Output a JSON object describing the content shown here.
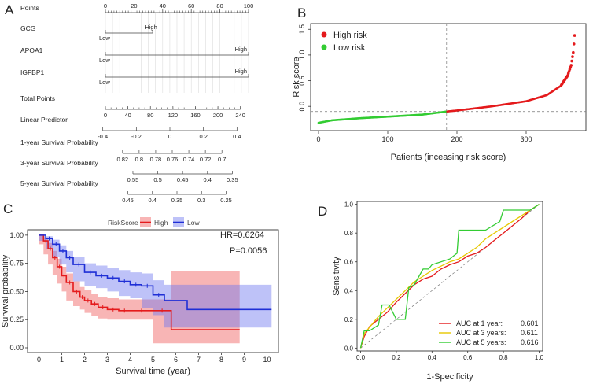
{
  "panels": {
    "a": "A",
    "b": "B",
    "c": "C",
    "d": "D"
  },
  "chart_data": [
    {
      "type": "nomogram",
      "panel": "A",
      "rows": [
        {
          "label": "Points",
          "ticks": [
            "0",
            "20",
            "40",
            "60",
            "80",
            "100"
          ],
          "values": [
            0,
            20,
            40,
            60,
            80,
            100
          ],
          "range": [
            0,
            100
          ]
        },
        {
          "label": "GCG",
          "low_label": "Low",
          "high_label": "High",
          "max_points": 33
        },
        {
          "label": "APOA1",
          "low_label": "Low",
          "high_label": "High",
          "max_points": 100
        },
        {
          "label": "IGFBP1",
          "low_label": "Low",
          "high_label": "High",
          "max_points": 100
        },
        {
          "label": "Total Points",
          "ticks": [
            "0",
            "40",
            "80",
            "120",
            "160",
            "200",
            "240"
          ],
          "values": [
            0,
            40,
            80,
            120,
            160,
            200,
            240
          ],
          "range": [
            0,
            260
          ]
        },
        {
          "label": "Linear Predictor",
          "ticks": [
            "-0.4",
            "-0.2",
            "0",
            "0.2",
            "0.4"
          ],
          "values": [
            -0.4,
            -0.2,
            0,
            0.2,
            0.4
          ],
          "range": [
            -0.45,
            0.45
          ]
        },
        {
          "label": "1-year Survival Probability",
          "ticks": [
            "0.82",
            "0.8",
            "0.78",
            "0.76",
            "0.74",
            "0.72",
            "0.7"
          ],
          "values": [
            0.82,
            0.8,
            0.78,
            0.76,
            0.74,
            0.72,
            0.7
          ],
          "range": [
            0.835,
            0.685
          ]
        },
        {
          "label": "3-year Survival Probability",
          "ticks": [
            "0.55",
            "0.5",
            "0.45",
            "0.4",
            "0.35"
          ],
          "values": [
            0.55,
            0.5,
            0.45,
            0.4,
            0.35
          ],
          "range": [
            0.58,
            0.33
          ]
        },
        {
          "label": "5-year Survival Probability",
          "ticks": [
            "0.45",
            "0.4",
            "0.35",
            "0.3",
            "0.25"
          ],
          "values": [
            0.45,
            0.4,
            0.35,
            0.3,
            0.25
          ],
          "range": [
            0.47,
            0.23
          ]
        }
      ]
    },
    {
      "type": "scatter",
      "panel": "B",
      "xlabel": "Patients (inceasing risk score)",
      "ylabel": "Risk score",
      "xlim": [
        0,
        375
      ],
      "ylim": [
        -0.38,
        1.55
      ],
      "xticks": [
        0,
        100,
        200,
        300
      ],
      "yticks": [
        -0.0,
        0.5,
        1.0,
        1.5
      ],
      "ytick_labels": [
        "0.0",
        "0.5",
        "1.0",
        "1.5"
      ],
      "cutoff_x": 185,
      "cutoff_y": -0.1,
      "n_patients": 370,
      "series": [
        {
          "name": "High risk",
          "color": "#e41a1c"
        },
        {
          "name": "Low risk",
          "color": "#33cc33"
        }
      ],
      "curve_points": [
        [
          0,
          -0.32
        ],
        [
          20,
          -0.27
        ],
        [
          60,
          -0.23
        ],
        [
          100,
          -0.2
        ],
        [
          150,
          -0.16
        ],
        [
          185,
          -0.1
        ],
        [
          200,
          -0.08
        ],
        [
          250,
          0.0
        ],
        [
          300,
          0.1
        ],
        [
          330,
          0.22
        ],
        [
          350,
          0.4
        ],
        [
          360,
          0.6
        ],
        [
          365,
          0.8
        ],
        [
          368,
          1.05
        ],
        [
          370,
          1.38
        ]
      ]
    },
    {
      "type": "line",
      "panel": "C",
      "subtype": "kaplan-meier",
      "xlabel": "Survival time (year)",
      "ylabel": "Survival probability",
      "xlim": [
        -0.5,
        10.5
      ],
      "ylim": [
        0,
        1.02
      ],
      "xticks": [
        0,
        1,
        2,
        3,
        4,
        5,
        6,
        7,
        8,
        9,
        10
      ],
      "yticks": [
        0.0,
        0.25,
        0.5,
        0.75,
        1.0
      ],
      "ytick_labels": [
        "0.00",
        "0.25",
        "0.50",
        "0.75",
        "1.00"
      ],
      "legend_title": "RiskScore",
      "legend_position": "top",
      "annotations": [
        "HR=0.6264",
        "P=0.0056"
      ],
      "series": [
        {
          "name": "High",
          "color": "#e41a1c",
          "x": [
            0,
            0.2,
            0.4,
            0.6,
            0.8,
            1.0,
            1.2,
            1.5,
            1.8,
            2.0,
            2.3,
            2.6,
            3.0,
            3.5,
            4.0,
            5.0,
            5.8,
            8.8
          ],
          "y": [
            1.0,
            0.95,
            0.88,
            0.8,
            0.72,
            0.64,
            0.58,
            0.5,
            0.45,
            0.42,
            0.39,
            0.36,
            0.34,
            0.33,
            0.33,
            0.33,
            0.16,
            0.16
          ],
          "ci_upper": [
            1.0,
            0.98,
            0.93,
            0.86,
            0.79,
            0.72,
            0.66,
            0.59,
            0.54,
            0.51,
            0.48,
            0.45,
            0.44,
            0.43,
            0.43,
            0.43,
            0.68,
            0.68
          ],
          "ci_lower": [
            1.0,
            0.92,
            0.83,
            0.74,
            0.65,
            0.57,
            0.5,
            0.42,
            0.37,
            0.34,
            0.31,
            0.28,
            0.26,
            0.25,
            0.25,
            0.25,
            0.04,
            0.04
          ]
        },
        {
          "name": "Low",
          "color": "#1f2fd6",
          "x": [
            0,
            0.3,
            0.6,
            0.9,
            1.2,
            1.5,
            2.0,
            2.5,
            3.0,
            3.5,
            4.0,
            4.5,
            5.0,
            5.5,
            6.5,
            10.2
          ],
          "y": [
            1.0,
            0.97,
            0.92,
            0.86,
            0.8,
            0.74,
            0.67,
            0.64,
            0.62,
            0.59,
            0.56,
            0.55,
            0.47,
            0.42,
            0.34,
            0.34
          ],
          "ci_upper": [
            1.0,
            0.99,
            0.96,
            0.91,
            0.86,
            0.81,
            0.75,
            0.73,
            0.71,
            0.69,
            0.67,
            0.66,
            0.6,
            0.56,
            0.56,
            0.56
          ],
          "ci_lower": [
            1.0,
            0.95,
            0.88,
            0.81,
            0.74,
            0.67,
            0.59,
            0.55,
            0.53,
            0.5,
            0.46,
            0.44,
            0.35,
            0.29,
            0.18,
            0.18
          ]
        }
      ]
    },
    {
      "type": "line",
      "panel": "D",
      "subtype": "roc",
      "xlabel": "1-Specificity",
      "ylabel": "Sensitivity",
      "xlim": [
        -0.02,
        1.02
      ],
      "ylim": [
        -0.02,
        1.02
      ],
      "xticks": [
        0.0,
        0.2,
        0.4,
        0.6,
        0.8,
        1.0
      ],
      "yticks": [
        0.0,
        0.2,
        0.4,
        0.6,
        0.8,
        1.0
      ],
      "tick_labels": [
        "0.0",
        "0.2",
        "0.4",
        "0.6",
        "0.8",
        "1.0"
      ],
      "legend_position": "bottom-right",
      "series": [
        {
          "name": "AUC at 1 year:",
          "auc": "0.601",
          "color": "#e41a1c",
          "x": [
            0,
            0.02,
            0.05,
            0.1,
            0.15,
            0.2,
            0.25,
            0.3,
            0.35,
            0.4,
            0.45,
            0.5,
            0.55,
            0.6,
            0.65,
            0.7,
            0.75,
            0.8,
            0.85,
            0.9,
            0.95,
            1.0
          ],
          "y": [
            0,
            0.08,
            0.15,
            0.2,
            0.25,
            0.32,
            0.38,
            0.44,
            0.48,
            0.5,
            0.55,
            0.58,
            0.6,
            0.64,
            0.66,
            0.7,
            0.75,
            0.8,
            0.85,
            0.9,
            0.96,
            1.0
          ]
        },
        {
          "name": "AUC at 3 years:",
          "auc": "0.611",
          "color": "#e6c800",
          "x": [
            0,
            0.02,
            0.06,
            0.1,
            0.15,
            0.2,
            0.25,
            0.3,
            0.35,
            0.4,
            0.45,
            0.5,
            0.55,
            0.6,
            0.65,
            0.7,
            0.75,
            0.8,
            0.85,
            0.9,
            0.95,
            1.0
          ],
          "y": [
            0,
            0.1,
            0.16,
            0.22,
            0.28,
            0.34,
            0.4,
            0.46,
            0.5,
            0.54,
            0.57,
            0.6,
            0.62,
            0.66,
            0.7,
            0.76,
            0.8,
            0.84,
            0.88,
            0.92,
            0.96,
            1.0
          ]
        },
        {
          "name": "AUC at 5 years:",
          "auc": "0.616",
          "color": "#33cc33",
          "x": [
            0,
            0.02,
            0.05,
            0.1,
            0.12,
            0.16,
            0.2,
            0.25,
            0.27,
            0.3,
            0.35,
            0.38,
            0.4,
            0.5,
            0.52,
            0.54,
            0.55,
            0.6,
            0.7,
            0.78,
            0.8,
            0.9,
            0.95,
            1.0
          ],
          "y": [
            0,
            0.12,
            0.12,
            0.16,
            0.3,
            0.3,
            0.2,
            0.2,
            0.42,
            0.44,
            0.55,
            0.55,
            0.58,
            0.62,
            0.64,
            0.66,
            0.82,
            0.82,
            0.82,
            0.88,
            0.96,
            0.96,
            0.96,
            1.0
          ]
        }
      ]
    }
  ]
}
